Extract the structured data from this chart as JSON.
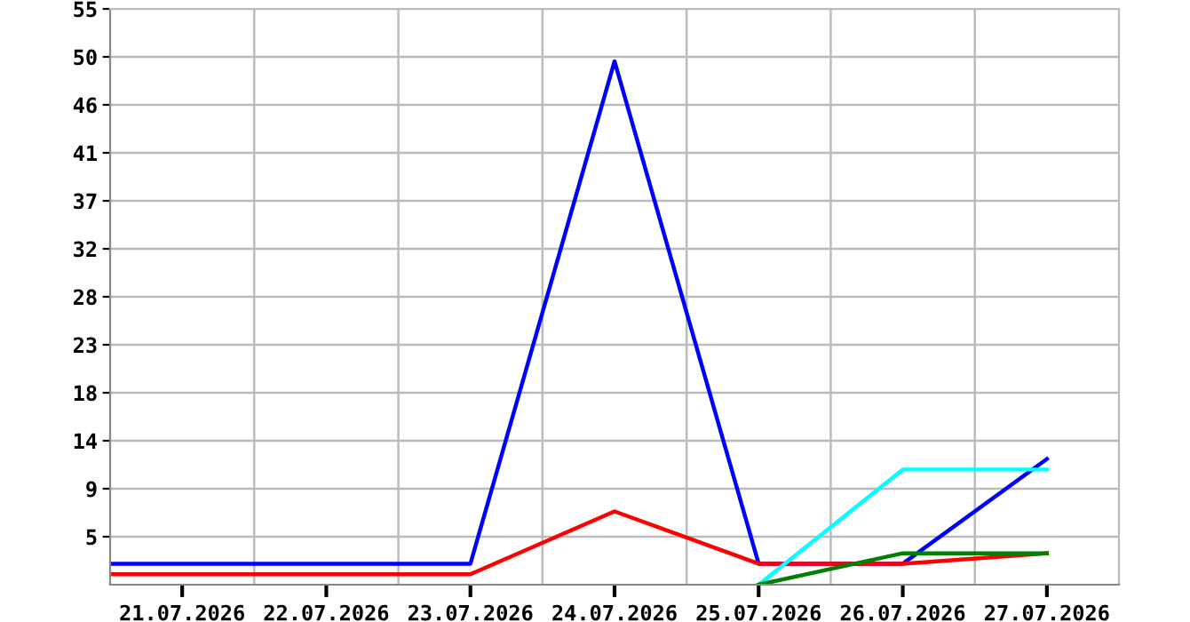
{
  "chart_data": {
    "type": "line",
    "xlim": [
      "2026-07-20T12:00",
      "2026-07-27T12:00"
    ],
    "xticks": [
      {
        "value": "2026-07-21",
        "label": "21.07.2026"
      },
      {
        "value": "2026-07-22",
        "label": "22.07.2026"
      },
      {
        "value": "2026-07-23",
        "label": "23.07.2026"
      },
      {
        "value": "2026-07-24",
        "label": "24.07.2026"
      },
      {
        "value": "2026-07-25",
        "label": "25.07.2026"
      },
      {
        "value": "2026-07-26",
        "label": "26.07.2026"
      },
      {
        "value": "2026-07-27",
        "label": "27.07.2026"
      },
      {
        "value": "2026-07-21T12:00",
        "label": null
      },
      {
        "value": "2026-07-22T12:00",
        "label": null
      },
      {
        "value": "2026-07-23T12:00",
        "label": null
      },
      {
        "value": "2026-07-24T12:00",
        "label": null
      },
      {
        "value": "2026-07-25T12:00",
        "label": null
      },
      {
        "value": "2026-07-26T12:00",
        "label": null
      }
    ],
    "ylim": [
      0,
      55
    ],
    "yticks": [
      {
        "value": 4.583,
        "label": "5"
      },
      {
        "value": 9.167,
        "label": "9"
      },
      {
        "value": 13.75,
        "label": "14"
      },
      {
        "value": 18.333,
        "label": "18"
      },
      {
        "value": 22.917,
        "label": "23"
      },
      {
        "value": 27.5,
        "label": "28"
      },
      {
        "value": 32.083,
        "label": "32"
      },
      {
        "value": 36.667,
        "label": "37"
      },
      {
        "value": 41.25,
        "label": "41"
      },
      {
        "value": 45.833,
        "label": "46"
      },
      {
        "value": 50.417,
        "label": "50"
      },
      55
    ],
    "grid": true,
    "marker": "none",
    "line_style": "solid",
    "series": [
      {
        "color": "#0000ff",
        "x": [
          "2026-07-20T12:00",
          "2026-07-23",
          "2026-07-24",
          "2026-07-25",
          "2026-07-26",
          "2026-07-27"
        ],
        "values": [
          2,
          2,
          50,
          2,
          2,
          12
        ]
      },
      {
        "color": "#ff0000",
        "x": [
          "2026-07-20T12:00",
          "2026-07-23",
          "2026-07-24",
          "2026-07-25",
          "2026-07-26",
          "2026-07-27"
        ],
        "values": [
          1,
          1,
          7,
          2,
          2,
          3
        ]
      },
      {
        "color": "#00ffff",
        "x": [
          "2026-07-25",
          "2026-07-26",
          "2026-07-27"
        ],
        "values": [
          0,
          11,
          11
        ]
      },
      {
        "color": "#008000",
        "x": [
          "2026-07-25",
          "2026-07-26",
          "2026-07-27"
        ],
        "values": [
          0,
          3,
          3
        ]
      }
    ]
  }
}
